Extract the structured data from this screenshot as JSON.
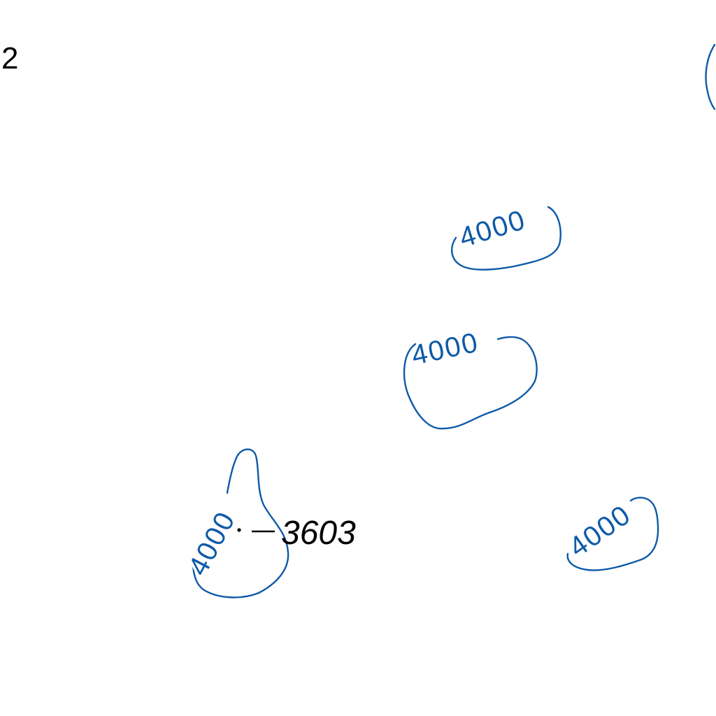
{
  "map": {
    "tile_number": "2",
    "contour_color": "#0e5aa7",
    "text_color": "#000000",
    "background": "#ffffff",
    "contours": [
      {
        "id": "contour-a",
        "label": "4000"
      },
      {
        "id": "contour-b",
        "label": "4000"
      },
      {
        "id": "contour-c",
        "label": "4000"
      },
      {
        "id": "contour-d",
        "label": "4000"
      },
      {
        "id": "contour-e",
        "label": ""
      }
    ],
    "spot_height": {
      "value": "3603",
      "symbol": "dot-dash"
    }
  }
}
